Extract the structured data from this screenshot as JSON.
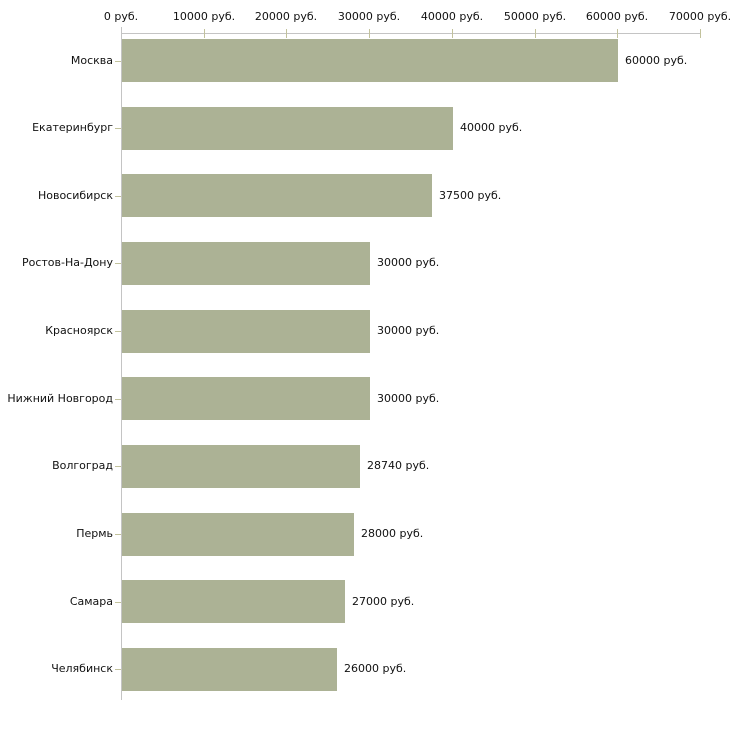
{
  "chart_data": {
    "type": "bar",
    "orientation": "horizontal",
    "title": "",
    "xlabel": "",
    "ylabel": "",
    "unit": "руб.",
    "grid": false,
    "legend": false,
    "xlim": [
      0,
      70000
    ],
    "x_ticks": [
      0,
      10000,
      20000,
      30000,
      40000,
      50000,
      60000,
      70000
    ],
    "x_tick_labels": [
      "0 руб.",
      "10000 руб.",
      "20000 руб.",
      "30000 руб.",
      "40000 руб.",
      "50000 руб.",
      "60000 руб.",
      "70000 руб."
    ],
    "categories": [
      "Москва",
      "Екатеринбург",
      "Новосибирск",
      "Ростов-На-Дону",
      "Красноярск",
      "Нижний Новгород",
      "Волгоград",
      "Пермь",
      "Самара",
      "Челябинск"
    ],
    "values": [
      60000,
      40000,
      37500,
      30000,
      30000,
      30000,
      28740,
      28000,
      27000,
      26000
    ],
    "value_labels": [
      "60000 руб.",
      "40000 руб.",
      "37500 руб.",
      "30000 руб.",
      "30000 руб.",
      "30000 руб.",
      "28740 руб.",
      "28000 руб.",
      "27000 руб.",
      "26000 руб."
    ],
    "colors": {
      "bar": "#acb295",
      "axis": "#c4c4c4",
      "tick": "#c2c29c",
      "text": "#111111",
      "background": "#ffffff"
    }
  }
}
